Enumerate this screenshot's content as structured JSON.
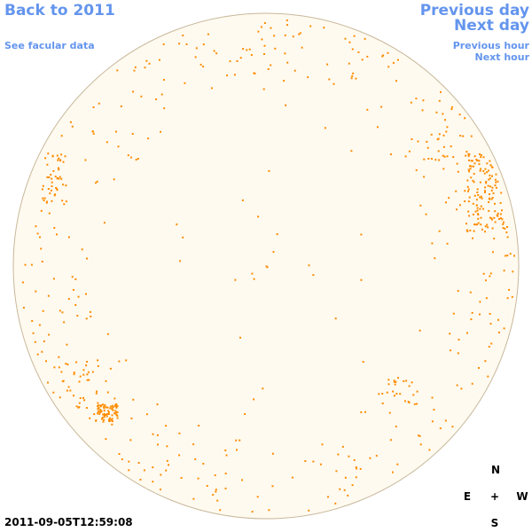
{
  "nav": {
    "back_label": "Back to 2011",
    "facular_label": "See facular data",
    "prev_day_label": "Previous day",
    "next_day_label": "Next day",
    "prev_hour_label": "Previous hour",
    "next_hour_label": "Next hour"
  },
  "compass": {
    "north": "N",
    "east": "E",
    "center": "+",
    "west": "W",
    "south": "S"
  },
  "timestamp": "2011-09-05T12:59:08",
  "colors": {
    "link": "#6495ed",
    "disk_fill": "#fffaf0",
    "disk_edge": "#c8b89a",
    "facula": "#ff8c00"
  }
}
